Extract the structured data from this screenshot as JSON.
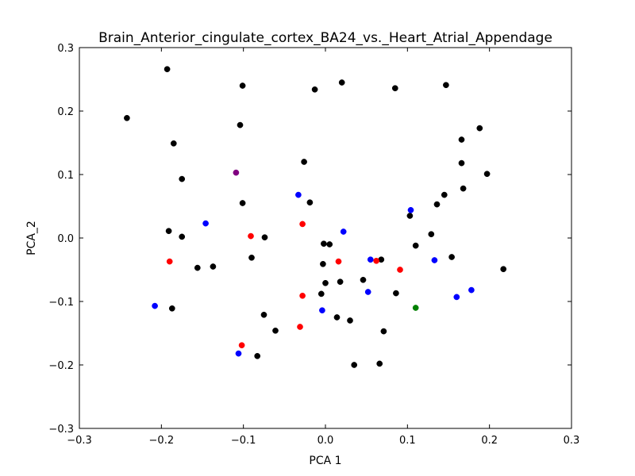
{
  "chart_data": {
    "type": "scatter",
    "title": "Brain_Anterior_cingulate_cortex_BA24_vs._Heart_Atrial_Appendage",
    "xlabel": "PCA 1",
    "ylabel": "PCA_2",
    "xlim": [
      -0.3,
      0.3
    ],
    "ylim": [
      -0.3,
      0.3
    ],
    "xticks": [
      "−0.3",
      "−0.2",
      "−0.1",
      "0.0",
      "0.1",
      "0.2",
      "0.3"
    ],
    "yticks": [
      "−0.3",
      "−0.2",
      "−0.1",
      "0.0",
      "0.1",
      "0.2",
      "0.3"
    ],
    "grid": false,
    "series": [
      {
        "color": "#000000",
        "points": [
          [
            -0.193,
            0.266
          ],
          [
            -0.101,
            0.24
          ],
          [
            0.02,
            0.245
          ],
          [
            -0.013,
            0.234
          ],
          [
            0.085,
            0.236
          ],
          [
            0.147,
            0.241
          ],
          [
            -0.242,
            0.189
          ],
          [
            -0.104,
            0.178
          ],
          [
            -0.185,
            0.149
          ],
          [
            0.188,
            0.173
          ],
          [
            0.166,
            0.155
          ],
          [
            -0.026,
            0.12
          ],
          [
            0.166,
            0.118
          ],
          [
            -0.175,
            0.093
          ],
          [
            0.197,
            0.101
          ],
          [
            0.168,
            0.078
          ],
          [
            -0.101,
            0.055
          ],
          [
            -0.019,
            0.056
          ],
          [
            0.145,
            0.068
          ],
          [
            0.136,
            0.053
          ],
          [
            0.103,
            0.035
          ],
          [
            -0.191,
            0.011
          ],
          [
            -0.175,
            0.002
          ],
          [
            -0.074,
            0.001
          ],
          [
            0.129,
            0.006
          ],
          [
            -0.002,
            -0.009
          ],
          [
            0.005,
            -0.01
          ],
          [
            0.11,
            -0.012
          ],
          [
            -0.09,
            -0.031
          ],
          [
            -0.003,
            -0.041
          ],
          [
            0.068,
            -0.034
          ],
          [
            0.154,
            -0.03
          ],
          [
            -0.156,
            -0.047
          ],
          [
            -0.137,
            -0.045
          ],
          [
            0.217,
            -0.049
          ],
          [
            0.0,
            -0.071
          ],
          [
            0.018,
            -0.069
          ],
          [
            0.046,
            -0.066
          ],
          [
            -0.005,
            -0.088
          ],
          [
            0.086,
            -0.087
          ],
          [
            -0.187,
            -0.111
          ],
          [
            -0.075,
            -0.121
          ],
          [
            0.014,
            -0.125
          ],
          [
            0.03,
            -0.13
          ],
          [
            -0.061,
            -0.146
          ],
          [
            0.071,
            -0.147
          ],
          [
            -0.083,
            -0.186
          ],
          [
            0.035,
            -0.2
          ],
          [
            0.066,
            -0.198
          ]
        ]
      },
      {
        "color": "#0000ff",
        "points": [
          [
            -0.033,
            0.068
          ],
          [
            0.104,
            0.044
          ],
          [
            -0.146,
            0.023
          ],
          [
            0.022,
            0.01
          ],
          [
            0.055,
            -0.034
          ],
          [
            0.133,
            -0.035
          ],
          [
            0.052,
            -0.085
          ],
          [
            0.16,
            -0.093
          ],
          [
            0.178,
            -0.082
          ],
          [
            -0.208,
            -0.107
          ],
          [
            -0.004,
            -0.114
          ],
          [
            -0.106,
            -0.182
          ]
        ]
      },
      {
        "color": "#ff0000",
        "points": [
          [
            -0.091,
            0.003
          ],
          [
            -0.028,
            0.022
          ],
          [
            -0.19,
            -0.037
          ],
          [
            0.016,
            -0.037
          ],
          [
            0.062,
            -0.036
          ],
          [
            0.091,
            -0.05
          ],
          [
            -0.028,
            -0.091
          ],
          [
            -0.031,
            -0.14
          ],
          [
            -0.102,
            -0.169
          ]
        ]
      },
      {
        "color": "#800080",
        "points": [
          [
            -0.109,
            0.103
          ]
        ]
      },
      {
        "color": "#008000",
        "points": [
          [
            0.11,
            -0.11
          ]
        ]
      }
    ]
  }
}
